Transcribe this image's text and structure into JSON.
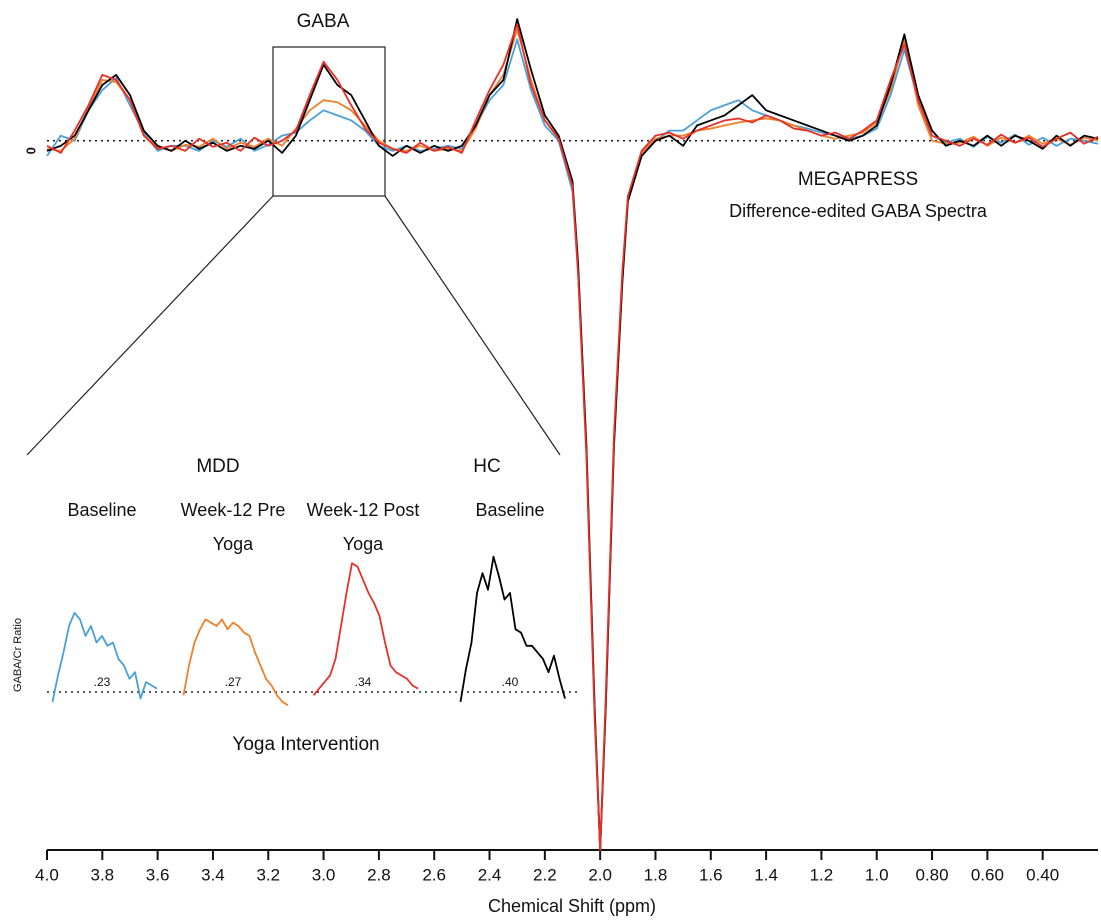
{
  "chart_data": [
    {
      "type": "line",
      "annotations": [
        "GABA",
        "MEGAPRESS",
        "Difference-edited GABA Spectra"
      ],
      "x_label": "Chemical Shift (ppm)",
      "x": [
        4.0,
        3.95,
        3.9,
        3.85,
        3.8,
        3.75,
        3.7,
        3.65,
        3.6,
        3.55,
        3.5,
        3.45,
        3.4,
        3.35,
        3.3,
        3.25,
        3.2,
        3.15,
        3.1,
        3.05,
        3.0,
        2.95,
        2.9,
        2.85,
        2.8,
        2.75,
        2.7,
        2.65,
        2.6,
        2.55,
        2.5,
        2.45,
        2.4,
        2.35,
        2.3,
        2.25,
        2.2,
        2.15,
        2.1,
        2.08,
        2.05,
        2.02,
        2.0,
        1.98,
        1.95,
        1.92,
        1.9,
        1.85,
        1.8,
        1.75,
        1.7,
        1.65,
        1.6,
        1.55,
        1.5,
        1.45,
        1.4,
        1.35,
        1.3,
        1.25,
        1.2,
        1.15,
        1.1,
        1.05,
        1.0,
        0.95,
        0.9,
        0.85,
        0.8,
        0.75,
        0.7,
        0.65,
        0.6,
        0.55,
        0.5,
        0.45,
        0.4,
        0.35,
        0.3,
        0.25,
        0.2
      ],
      "series": [
        {
          "color": "#4a9fd8",
          "values": [
            -0.15,
            0.05,
            0,
            0.3,
            0.5,
            0.62,
            0.35,
            0.08,
            -0.1,
            -0.05,
            -0.05,
            -0.1,
            0,
            -0.06,
            0.02,
            -0.1,
            -0.04,
            0.05,
            0.08,
            0.2,
            0.3,
            0.25,
            0.2,
            0.1,
            -0.05,
            -0.1,
            -0.05,
            -0.1,
            -0.08,
            -0.05,
            -0.08,
            0.15,
            0.4,
            0.55,
            1.0,
            0.5,
            0.15,
            0,
            -0.5,
            -1.3,
            -3,
            -5.6,
            -7,
            -5.6,
            -3,
            -1.4,
            -0.6,
            -0.15,
            0,
            0.1,
            0.1,
            0.2,
            0.3,
            0.35,
            0.4,
            0.3,
            0.25,
            0.2,
            0.15,
            0.12,
            0.08,
            0.05,
            0.02,
            0.05,
            0.12,
            0.45,
            0.9,
            0.4,
            0.05,
            -0.02,
            0.02,
            -0.06,
            0.04,
            -0.02,
            0.06,
            -0.04,
            0.03,
            -0.05,
            0.02,
            0,
            -0.03
          ]
        },
        {
          "color": "#f07f2a",
          "values": [
            -0.08,
            -0.1,
            0.02,
            0.32,
            0.6,
            0.58,
            0.4,
            0.05,
            -0.06,
            -0.1,
            -0.04,
            -0.06,
            0.02,
            -0.08,
            -0.02,
            -0.06,
            0.02,
            -0.05,
            0.12,
            0.3,
            0.4,
            0.38,
            0.3,
            0.15,
            0,
            -0.08,
            -0.1,
            -0.05,
            -0.1,
            -0.08,
            -0.1,
            0.12,
            0.45,
            0.65,
            1.1,
            0.6,
            0.2,
            0.03,
            -0.45,
            -1.25,
            -3,
            -5.6,
            -7,
            -5.6,
            -3,
            -1.4,
            -0.6,
            -0.12,
            0.02,
            0.05,
            0.05,
            0.1,
            0.12,
            0.15,
            0.18,
            0.2,
            0.22,
            0.2,
            0.15,
            0.1,
            0.05,
            0.02,
            0.05,
            0.08,
            0.18,
            0.5,
            1.0,
            0.35,
            0,
            -0.03,
            -0.02,
            0.04,
            -0.05,
            0.03,
            -0.02,
            0.05,
            -0.03,
            0.02,
            -0.04,
            0.03,
            0
          ]
        },
        {
          "color": "#000000",
          "values": [
            -0.1,
            -0.05,
            0.05,
            0.3,
            0.55,
            0.65,
            0.45,
            0.1,
            -0.05,
            -0.1,
            0,
            -0.08,
            -0.02,
            -0.1,
            -0.05,
            -0.08,
            0,
            -0.12,
            0.05,
            0.4,
            0.75,
            0.55,
            0.45,
            0.2,
            -0.05,
            -0.15,
            -0.05,
            -0.12,
            -0.05,
            -0.1,
            -0.05,
            0.15,
            0.45,
            0.6,
            1.2,
            0.7,
            0.25,
            0.05,
            -0.4,
            -1.2,
            -3,
            -5.6,
            -7,
            -5.6,
            -3,
            -1.4,
            -0.6,
            -0.15,
            0,
            0.05,
            -0.05,
            0.15,
            0.2,
            0.25,
            0.35,
            0.45,
            0.3,
            0.25,
            0.2,
            0.15,
            0.1,
            0.05,
            0,
            0.05,
            0.15,
            0.55,
            1.05,
            0.45,
            0.1,
            -0.05,
            0,
            -0.05,
            0.05,
            -0.05,
            0.05,
            0,
            -0.08,
            0.05,
            -0.05,
            0.05,
            0.02
          ]
        },
        {
          "color": "#e8302a",
          "values": [
            -0.05,
            -0.12,
            0.1,
            0.35,
            0.65,
            0.6,
            0.4,
            0.05,
            -0.08,
            -0.05,
            -0.1,
            0.02,
            -0.06,
            -0.02,
            -0.1,
            0.03,
            -0.05,
            0,
            0.1,
            0.45,
            0.78,
            0.6,
            0.35,
            0.12,
            -0.02,
            -0.08,
            -0.12,
            -0.02,
            -0.1,
            -0.06,
            -0.12,
            0.2,
            0.5,
            0.75,
            1.15,
            0.55,
            0.2,
            0.02,
            -0.45,
            -1.3,
            -3.1,
            -5.7,
            -7,
            -5.5,
            -2.9,
            -1.3,
            -0.55,
            -0.1,
            0.05,
            0.08,
            0.02,
            0.1,
            0.15,
            0.2,
            0.22,
            0.18,
            0.25,
            0.2,
            0.12,
            0.1,
            0.05,
            0.08,
            0.02,
            0.1,
            0.2,
            0.6,
            0.95,
            0.4,
            0.05,
            0,
            -0.05,
            0.02,
            -0.04,
            0.06,
            -0.02,
            0.03,
            -0.06,
            0.02,
            0.08,
            -0.03,
            0.04
          ]
        }
      ],
      "xlim": [
        4.0,
        0.2
      ],
      "xticks": [
        {
          "value": 4.0,
          "label": "4.0"
        },
        3.8,
        3.6,
        3.4,
        3.2,
        {
          "value": 3.0,
          "label": "3.0"
        },
        2.8,
        2.6,
        2.4,
        2.2,
        {
          "value": 2.0,
          "label": "2.0"
        },
        1.8,
        1.6,
        1.4,
        1.2,
        {
          "value": 1.0,
          "label": "1.0"
        },
        {
          "value": 0.8,
          "label": "0.80"
        },
        {
          "value": 0.6,
          "label": "0.60"
        },
        {
          "value": 0.4,
          "label": "0.40"
        }
      ],
      "ylim": [
        -7,
        1.3
      ],
      "yticks": [
        0
      ],
      "grid": true
    },
    {
      "type": "line",
      "ylabel": "GABA/Cr Ratio",
      "annotation": "Yoga Intervention",
      "groups": [
        "MDD",
        "HC"
      ],
      "x": [
        3.18,
        3.16,
        3.14,
        3.12,
        3.1,
        3.08,
        3.06,
        3.04,
        3.02,
        3.0,
        2.98,
        2.96,
        2.94,
        2.92,
        2.9,
        2.88,
        2.86,
        2.84,
        2.82,
        2.8
      ],
      "xlim": [
        3.2,
        2.8
      ],
      "ylim": [
        -0.05,
        0.45
      ],
      "series": [
        {
          "name": "Baseline",
          "color": "#4a9fd8",
          "value_label": ".23",
          "values": [
            -0.03,
            0.05,
            0.12,
            0.2,
            0.24,
            0.22,
            0.17,
            0.2,
            0.15,
            0.17,
            0.14,
            0.15,
            0.1,
            0.08,
            0.04,
            0.06,
            -0.02,
            0.03,
            0.02,
            0.01
          ]
        },
        {
          "name": "Week-12 Pre Yoga",
          "color": "#f07f2a",
          "value_label": ".27",
          "values": [
            -0.01,
            0.08,
            0.15,
            0.19,
            0.22,
            0.21,
            0.2,
            0.22,
            0.19,
            0.21,
            0.2,
            0.18,
            0.17,
            0.12,
            0.08,
            0.04,
            0.02,
            -0.01,
            -0.03,
            -0.04
          ]
        },
        {
          "name": "Week-12 Post Yoga",
          "color": "#e8302a",
          "value_label": ".34",
          "values": [
            -0.01,
            0.01,
            0.03,
            0.05,
            0.1,
            0.2,
            0.3,
            0.39,
            0.38,
            0.34,
            0.3,
            0.27,
            0.23,
            0.15,
            0.08,
            0.06,
            0.05,
            0.04,
            0.02,
            0.01
          ]
        },
        {
          "name": "Baseline",
          "color": "#000000",
          "value_label": ".40",
          "values": [
            -0.03,
            0.07,
            0.15,
            0.3,
            0.36,
            0.31,
            0.41,
            0.35,
            0.28,
            0.3,
            0.19,
            0.18,
            0.14,
            0.14,
            0.12,
            0.1,
            0.06,
            0.11,
            0.04,
            -0.02
          ]
        }
      ]
    }
  ]
}
